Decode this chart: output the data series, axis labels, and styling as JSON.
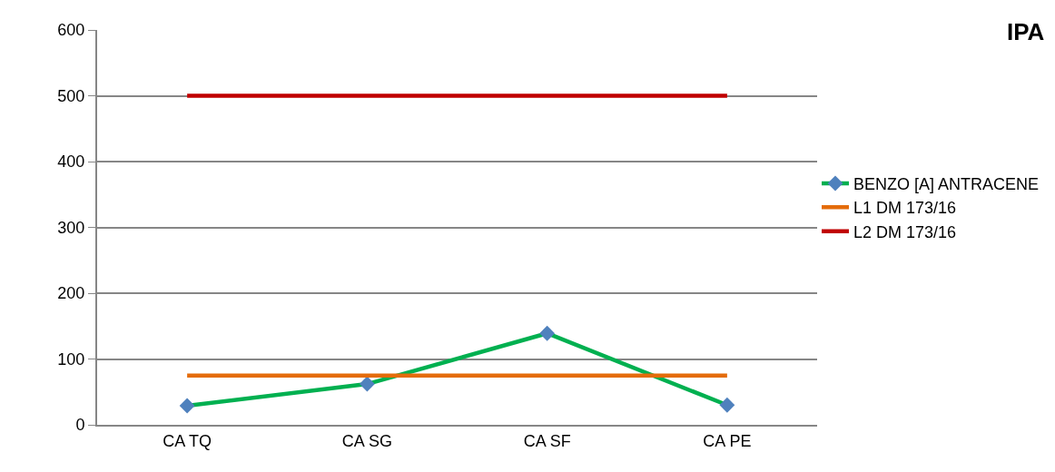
{
  "chart_data": {
    "type": "line",
    "title": "IPA",
    "categories": [
      "CA TQ",
      "CA SG",
      "CA SF",
      "CA PE"
    ],
    "series": [
      {
        "name": "BENZO [A] ANTRACENE",
        "color": "#00b050",
        "colors": [
          "#4f81bd",
          "#4f81bd",
          "#4f81bd",
          "#4f81bd"
        ],
        "marker": "diamond",
        "values": [
          29,
          62,
          139,
          30
        ]
      },
      {
        "name": "L1 DM 173/16",
        "color": "#e46c0a",
        "marker": "none",
        "values": [
          75,
          75,
          75,
          75
        ]
      },
      {
        "name": "L2 DM 173/16",
        "color": "#c00000",
        "marker": "none",
        "values": [
          500,
          500,
          500,
          500
        ]
      }
    ],
    "ylim": [
      0,
      600
    ],
    "yticks": [
      0,
      100,
      200,
      300,
      400,
      500,
      600
    ],
    "grid": "y",
    "legend": "right"
  }
}
